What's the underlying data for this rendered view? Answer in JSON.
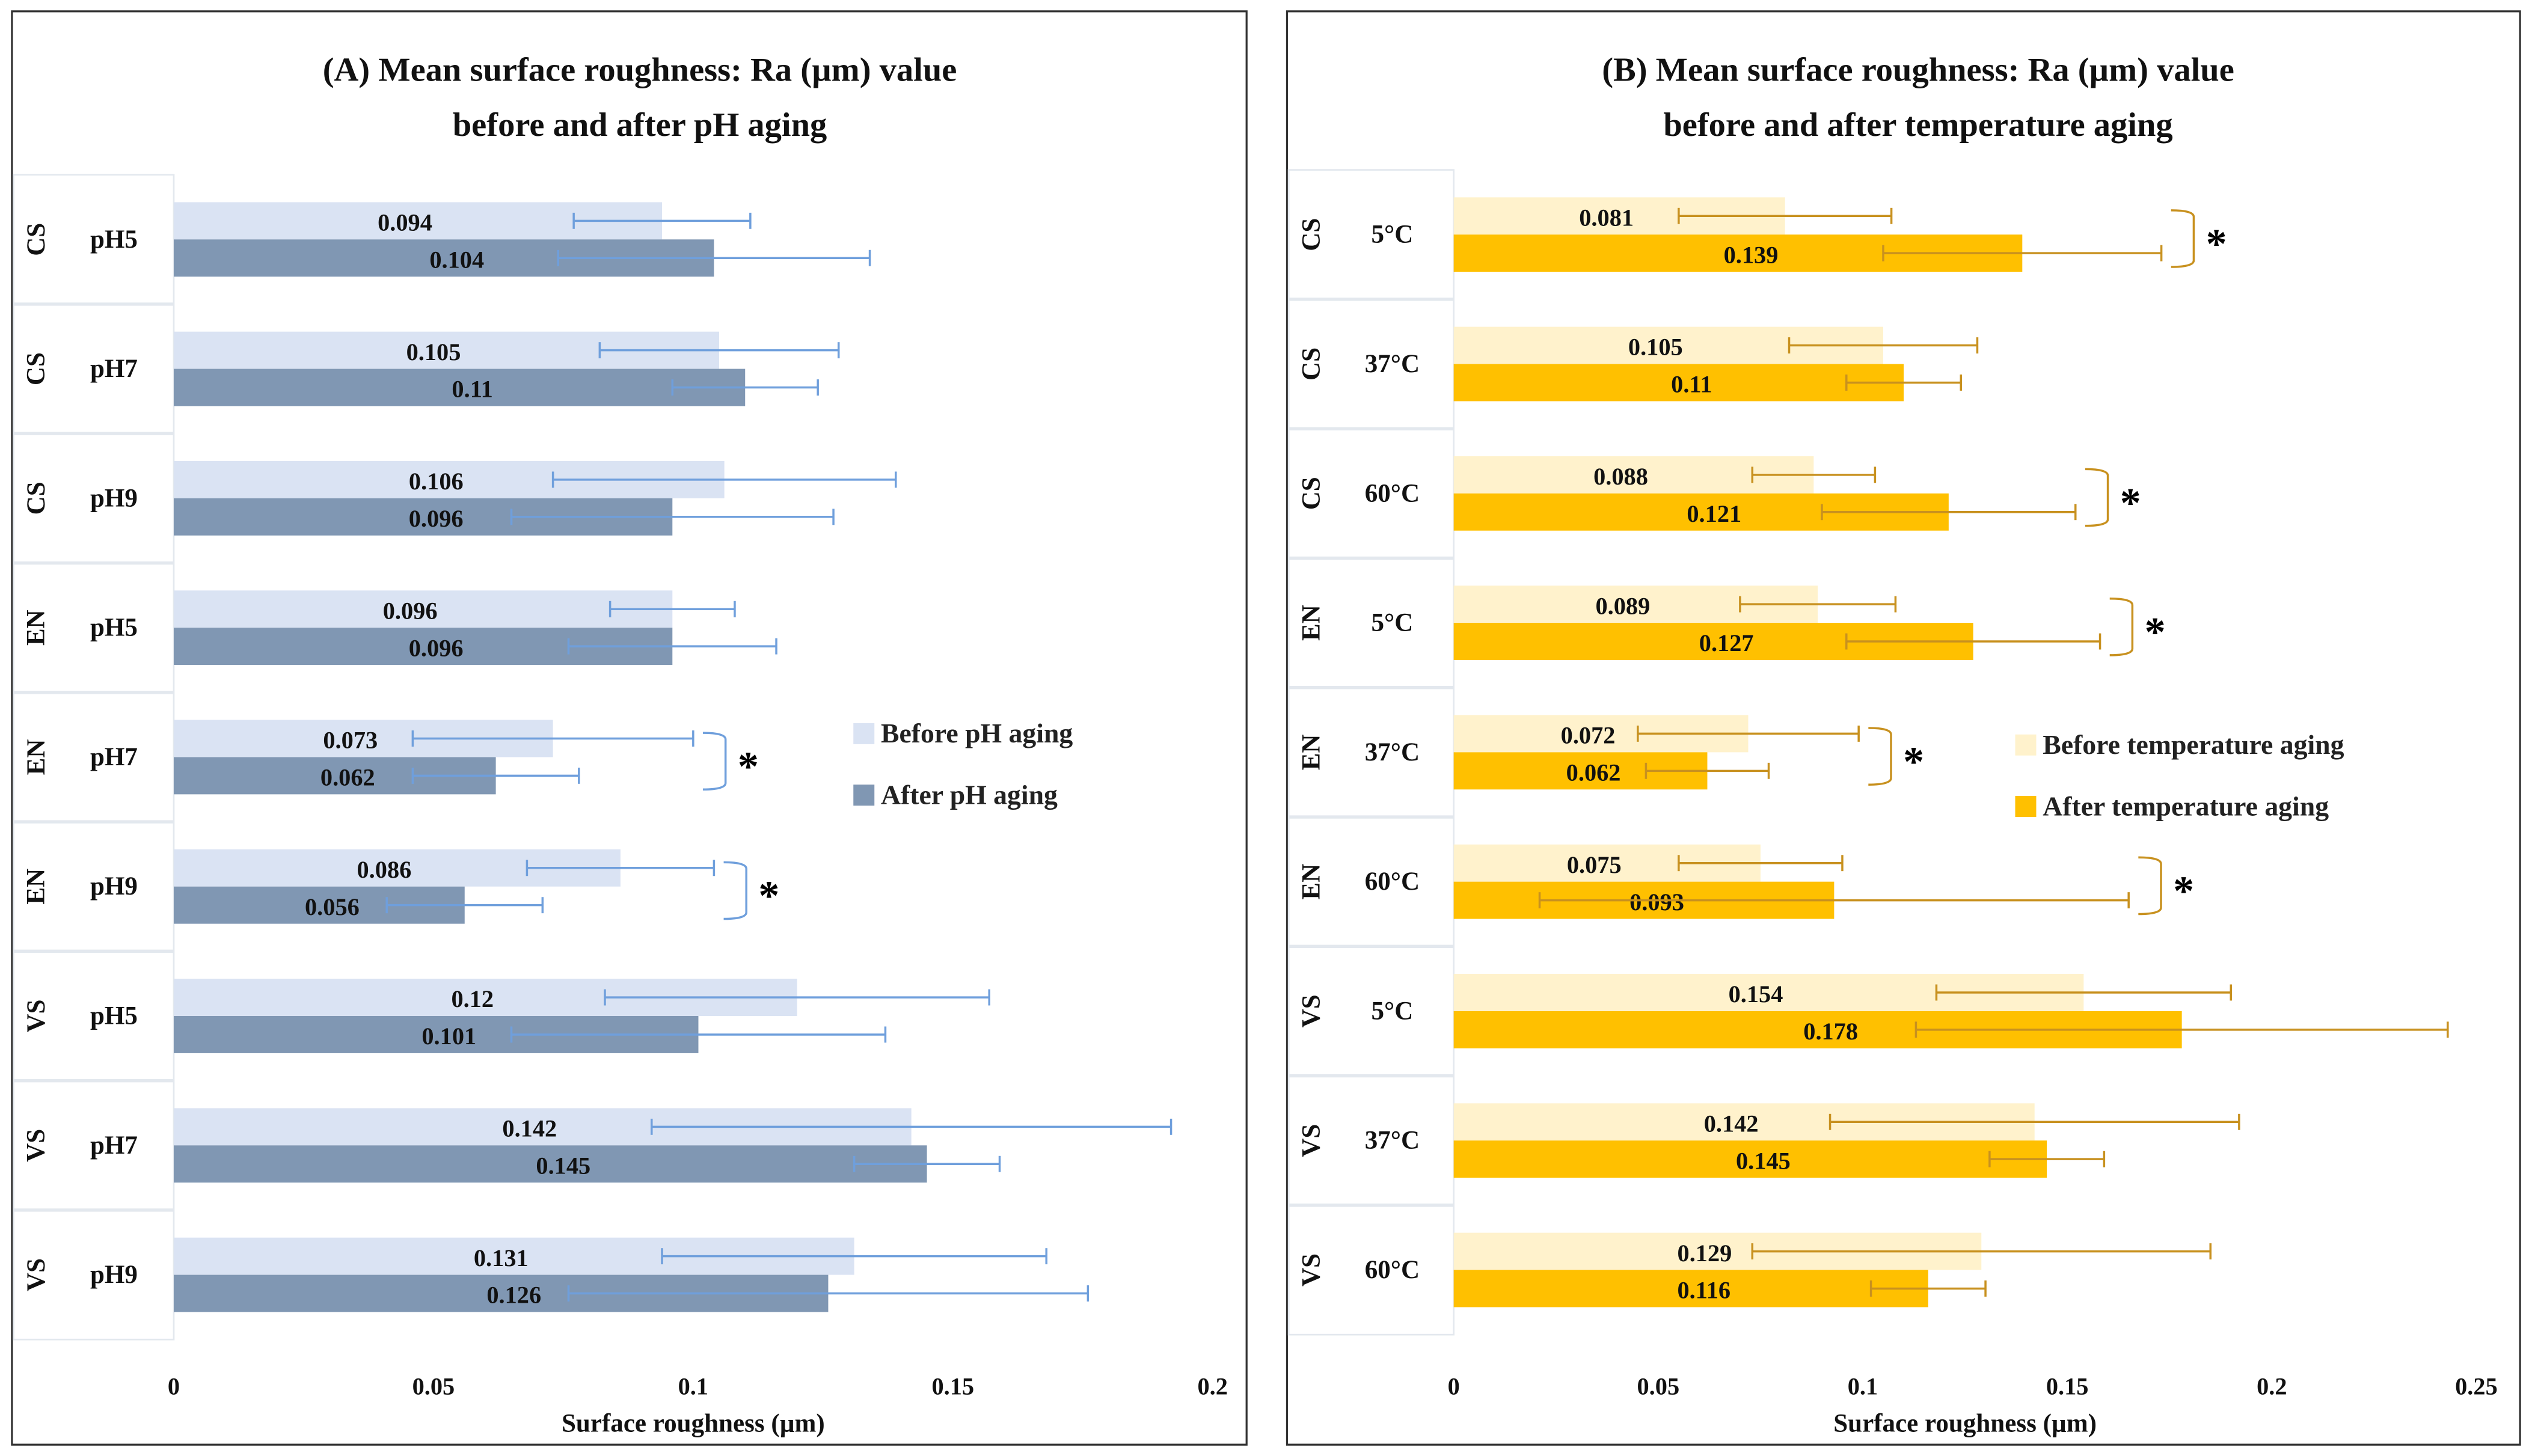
{
  "chart_data": [
    {
      "type": "bar",
      "orientation": "horizontal",
      "title": [
        "(A) Mean surface roughness: Ra (µm) value",
        "before and after pH aging"
      ],
      "xlabel": "Surface roughness (µm)",
      "xlim": [
        0,
        0.2
      ],
      "xticks": [
        "0",
        "0.05",
        "0.1",
        "0.15",
        "0.2"
      ],
      "xtick_values": [
        0,
        0.05,
        0.1,
        0.15,
        0.2
      ],
      "categories": [
        [
          "CS",
          "pH5"
        ],
        [
          "CS",
          "pH7"
        ],
        [
          "CS",
          "pH9"
        ],
        [
          "EN",
          "pH5"
        ],
        [
          "EN",
          "pH7"
        ],
        [
          "EN",
          "pH9"
        ],
        [
          "VS",
          "pH5"
        ],
        [
          "VS",
          "pH7"
        ],
        [
          "VS",
          "pH9"
        ]
      ],
      "series": [
        {
          "name": "Before pH aging",
          "color": "#dae3f3",
          "error_color": "#6f9fdc",
          "values": [
            0.094,
            0.105,
            0.106,
            0.096,
            0.073,
            0.086,
            0.12,
            0.142,
            0.131
          ],
          "labels": [
            "0.094",
            "0.105",
            "0.106",
            "0.096",
            "0.073",
            "0.086",
            "0.12",
            "0.142",
            "0.131"
          ],
          "errors": [
            0.017,
            0.023,
            0.033,
            0.012,
            0.027,
            0.018,
            0.037,
            0.05,
            0.037
          ]
        },
        {
          "name": "After pH aging",
          "color": "#8097b3",
          "error_color": "#6f9fdc",
          "values": [
            0.104,
            0.11,
            0.096,
            0.096,
            0.062,
            0.056,
            0.101,
            0.145,
            0.126
          ],
          "labels": [
            "0.104",
            "0.11",
            "0.096",
            "0.096",
            "0.062",
            "0.056",
            "0.101",
            "0.145",
            "0.126"
          ],
          "errors": [
            0.03,
            0.014,
            0.031,
            0.02,
            0.016,
            0.015,
            0.036,
            0.014,
            0.05
          ]
        }
      ],
      "significant": [
        4,
        5
      ],
      "significance_mark": "*",
      "legend": "right"
    },
    {
      "type": "bar",
      "orientation": "horizontal",
      "title": [
        "(B) Mean surface roughness: Ra (µm) value",
        "before and after temperature aging"
      ],
      "xlabel": "Surface roughness (µm)",
      "xlim": [
        0,
        0.25
      ],
      "xticks": [
        "0",
        "0.05",
        "0.1",
        "0.15",
        "0.2",
        "0.25"
      ],
      "xtick_values": [
        0,
        0.05,
        0.1,
        0.15,
        0.2,
        0.25
      ],
      "categories": [
        [
          "CS",
          "5°C"
        ],
        [
          "CS",
          "37°C"
        ],
        [
          "CS",
          "60°C"
        ],
        [
          "EN",
          "5°C"
        ],
        [
          "EN",
          "37°C"
        ],
        [
          "EN",
          "60°C"
        ],
        [
          "VS",
          "5°C"
        ],
        [
          "VS",
          "37°C"
        ],
        [
          "VS",
          "60°C"
        ]
      ],
      "series": [
        {
          "name": "Before temperature aging",
          "color": "#fff2cc",
          "error_color": "#c8911f",
          "values": [
            0.081,
            0.105,
            0.088,
            0.089,
            0.072,
            0.075,
            0.154,
            0.142,
            0.129
          ],
          "labels": [
            "0.081",
            "0.105",
            "0.088",
            "0.089",
            "0.072",
            "0.075",
            "0.154",
            "0.142",
            "0.129"
          ],
          "errors": [
            0.026,
            0.023,
            0.015,
            0.019,
            0.027,
            0.02,
            0.036,
            0.05,
            0.056
          ]
        },
        {
          "name": "After temperature aging",
          "color": "#ffc000",
          "error_color": "#c8911f",
          "values": [
            0.139,
            0.11,
            0.121,
            0.127,
            0.062,
            0.093,
            0.178,
            0.145,
            0.116
          ],
          "labels": [
            "0.139",
            "0.11",
            "0.121",
            "0.127",
            "0.062",
            "0.093",
            "0.178",
            "0.145",
            "0.116"
          ],
          "errors": [
            0.034,
            0.014,
            0.031,
            0.031,
            0.015,
            0.072,
            0.065,
            0.014,
            0.014
          ]
        }
      ],
      "significant": [
        0,
        2,
        3,
        4,
        5
      ],
      "significance_mark": "*",
      "legend": "right"
    }
  ]
}
